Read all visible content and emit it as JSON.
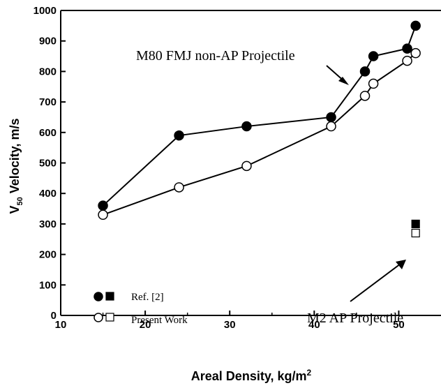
{
  "chart_data": {
    "type": "line",
    "xlabel": "Areal Density, kg/m",
    "xlabel_sup": "2",
    "ylabel": "V",
    "ylabel_sub": "50",
    "ylabel_rest": " Velocity, m/s",
    "xlim": [
      10,
      55
    ],
    "ylim": [
      0,
      1000
    ],
    "xticks": [
      10,
      20,
      30,
      40,
      50
    ],
    "yticks": [
      0,
      100,
      200,
      300,
      400,
      500,
      600,
      700,
      800,
      900,
      1000
    ],
    "grid": false,
    "series": [
      {
        "name": "Ref. [2]",
        "marker": "filled-circle",
        "line": true,
        "x": [
          15,
          24,
          32,
          42,
          46,
          47,
          51,
          52
        ],
        "y": [
          360,
          590,
          620,
          650,
          800,
          850,
          875,
          950
        ]
      },
      {
        "name": "Present Work",
        "marker": "open-circle",
        "line": true,
        "x": [
          15,
          24,
          32,
          42,
          46,
          47,
          51,
          52
        ],
        "y": [
          330,
          420,
          490,
          620,
          720,
          760,
          835,
          860
        ]
      },
      {
        "name": "Ref. [2]",
        "marker": "filled-square",
        "line": false,
        "x": [
          52
        ],
        "y": [
          300
        ]
      },
      {
        "name": "Present Work",
        "marker": "open-square",
        "line": false,
        "x": [
          52
        ],
        "y": [
          270
        ]
      }
    ],
    "legend": [
      {
        "label": "Ref. [2]",
        "markers": [
          "filled-circle",
          "filled-square"
        ]
      },
      {
        "label": "Present Work",
        "markers": [
          "open-circle",
          "open-square"
        ]
      }
    ],
    "legend_position": "bottom-left",
    "annotations": [
      {
        "text": "M80 FMJ non-AP Projectile",
        "points_to": "circle series"
      },
      {
        "text": "M2 AP Projectile",
        "points_to": "square markers"
      }
    ],
    "colors": {
      "line": "#000000",
      "marker_fill": "#000000",
      "marker_open": "#ffffff"
    }
  }
}
